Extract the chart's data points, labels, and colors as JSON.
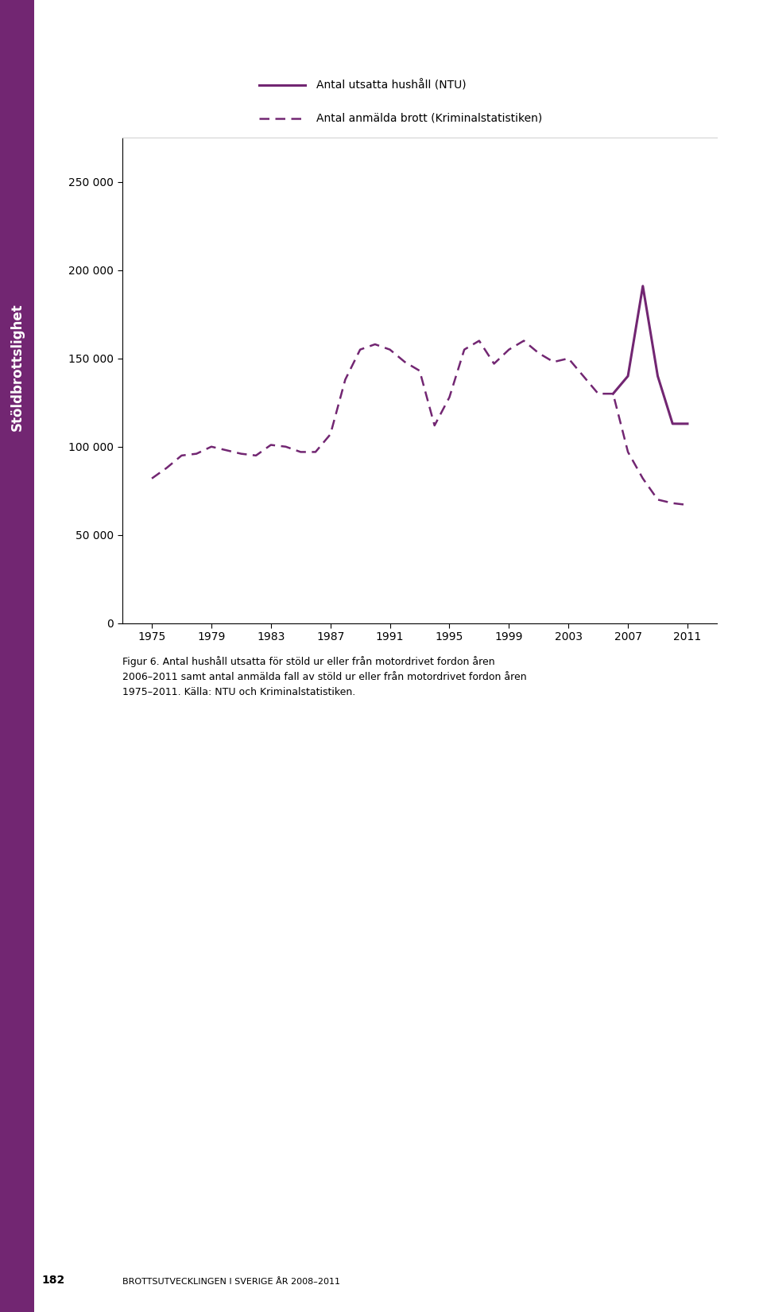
{
  "legend_solid": "Antal utsatta hushåll (NTU)",
  "legend_dashed": "Antal anmälda brott (Kriminalstatistiken)",
  "caption": "Figur 6. Antal hushåll utsatta för stöld ur eller från motordrivet fordon åren\n2006–2011 samt antal anmälda fall av stöld ur eller från motordrivet fordon åren\n1975–2011. Källa: NTU och Kriminalstatistiken.",
  "color": "#722672",
  "ylim": [
    0,
    275000
  ],
  "yticks": [
    0,
    50000,
    100000,
    150000,
    200000,
    250000
  ],
  "ytick_labels": [
    "0",
    "50 000",
    "100 000",
    "150 000",
    "200 000",
    "250 000"
  ],
  "xticks": [
    1975,
    1979,
    1983,
    1987,
    1991,
    1995,
    1999,
    2003,
    2007,
    2011
  ],
  "dashed_years": [
    1975,
    1976,
    1977,
    1978,
    1979,
    1980,
    1981,
    1982,
    1983,
    1984,
    1985,
    1986,
    1987,
    1988,
    1989,
    1990,
    1991,
    1992,
    1993,
    1994,
    1995,
    1996,
    1997,
    1998,
    1999,
    2000,
    2001,
    2002,
    2003,
    2004,
    2005,
    2006,
    2007,
    2008,
    2009,
    2010,
    2011
  ],
  "dashed_values": [
    82000,
    88000,
    95000,
    96000,
    100000,
    98000,
    96000,
    95000,
    101000,
    100000,
    97000,
    97000,
    107000,
    138000,
    155000,
    158000,
    155000,
    148000,
    143000,
    112000,
    128000,
    155000,
    160000,
    147000,
    155000,
    160000,
    153000,
    148000,
    150000,
    140000,
    130000,
    130000,
    97000,
    82000,
    70000,
    68000,
    67000
  ],
  "solid_years": [
    2006,
    2007,
    2008,
    2009,
    2010,
    2011
  ],
  "solid_values": [
    130000,
    140000,
    191000,
    140000,
    113000,
    113000
  ],
  "sidebar_text": "Stöldbrottslighet",
  "sidebar_color": "#722672",
  "background_color": "#ffffff",
  "page_number": "182",
  "bottom_text": "BROTTSUTVECKLINGEN I SVERIGE ÅR 2008–2011"
}
